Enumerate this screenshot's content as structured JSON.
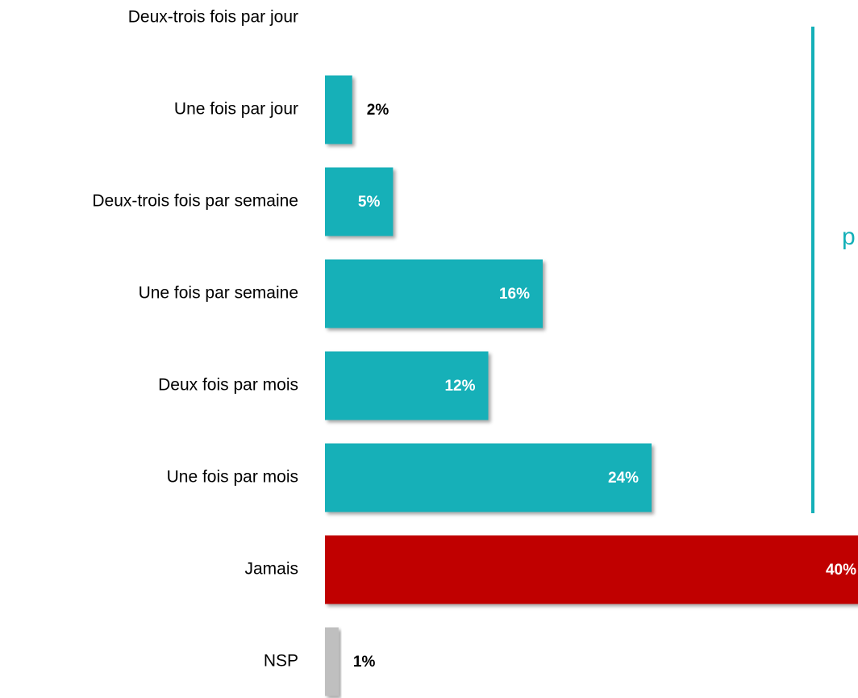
{
  "chart_data": {
    "type": "bar",
    "orientation": "horizontal",
    "categories": [
      "Deux-trois fois par jour",
      "Une fois par jour",
      "Deux-trois fois par semaine",
      "Une fois par semaine",
      "Deux fois par mois",
      "Une fois par mois",
      "Jamais",
      "NSP"
    ],
    "values": [
      null,
      2,
      5,
      16,
      12,
      24,
      40,
      1
    ],
    "value_labels": [
      null,
      "2%",
      "5%",
      "16%",
      "12%",
      "24%",
      "40%",
      "1%"
    ],
    "colors": [
      "#14b0b8",
      "#14b0b8",
      "#14b0b8",
      "#14b0b8",
      "#14b0b8",
      "#14b0b8",
      "#c00000",
      "#bfbfbf"
    ],
    "xlim": [
      0,
      40
    ],
    "annotations": [
      "p"
    ]
  }
}
